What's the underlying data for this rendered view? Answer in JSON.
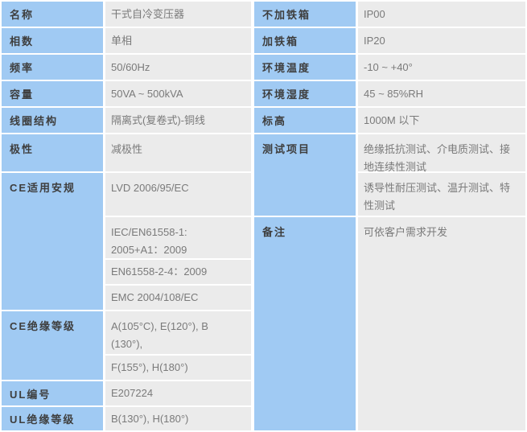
{
  "colors": {
    "label_bg": "#a0caf3",
    "value_bg": "#ebebeb",
    "separator": "#ffffff",
    "label_text": "#3e3e3e",
    "value_text": "#7a7a7a"
  },
  "left_table": {
    "rows": [
      {
        "label": "名称",
        "value": "干式自冷变压器"
      },
      {
        "label": "相数",
        "value": "单相"
      },
      {
        "label": "频率",
        "value": "50/60Hz"
      },
      {
        "label": "容量",
        "value": "50VA ~ 500kVA"
      },
      {
        "label": "线圈结构",
        "value": "隔离式(复卷式)-铜线"
      },
      {
        "label": "极性",
        "value": "减极性"
      },
      {
        "label": "CE适用安规",
        "values": [
          "LVD 2006/95/EC",
          "IEC/EN61558-1:\n2005+A1：2009",
          "EN61558-2-4：2009",
          "EMC 2004/108/EC"
        ]
      },
      {
        "label": "CE绝缘等级",
        "values": [
          "A(105°C), E(120°), B\n(130°),",
          "F(155°), H(180°)"
        ]
      },
      {
        "label": "UL编号",
        "value": "E207224"
      },
      {
        "label": "UL绝缘等级",
        "value": "B(130°), H(180°)"
      }
    ]
  },
  "right_table": {
    "rows": [
      {
        "label": "不加铁箱",
        "value": "IP00"
      },
      {
        "label": "加铁箱",
        "value": "IP20"
      },
      {
        "label": "环境温度",
        "value": "-10 ~ +40°"
      },
      {
        "label": "环境湿度",
        "value": "45 ~ 85%RH"
      },
      {
        "label": "标高",
        "value": "1000M 以下"
      },
      {
        "label": "测试项目",
        "values": [
          "绝缘抵抗测试、介电质测试、接\n地连续性测试",
          "诱导性耐压测试、温升测试、特\n性测试"
        ]
      },
      {
        "label": "备注",
        "value": "可依客户需求开发"
      }
    ]
  }
}
